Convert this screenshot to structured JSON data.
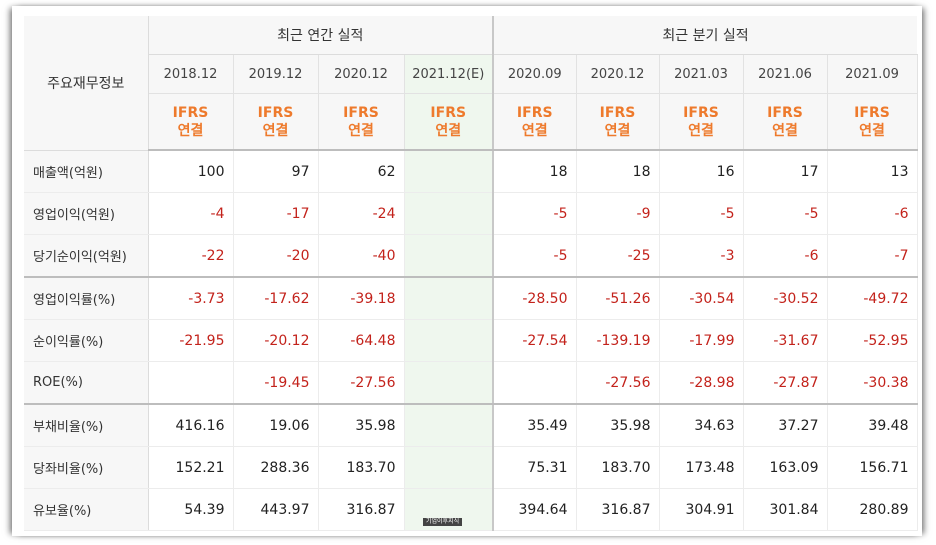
{
  "header": {
    "label": "주요재무정보",
    "annual_group": "최근 연간 실적",
    "quarter_group": "최근 분기 실적"
  },
  "periods": [
    {
      "label": "2018.12",
      "std": "IFRS",
      "cons": "연결"
    },
    {
      "label": "2019.12",
      "std": "IFRS",
      "cons": "연결"
    },
    {
      "label": "2020.12",
      "std": "IFRS",
      "cons": "연결"
    },
    {
      "label": "2021.12(E)",
      "std": "IFRS",
      "cons": "연결"
    },
    {
      "label": "2020.09",
      "std": "IFRS",
      "cons": "연결"
    },
    {
      "label": "2020.12",
      "std": "IFRS",
      "cons": "연결"
    },
    {
      "label": "2021.03",
      "std": "IFRS",
      "cons": "연결"
    },
    {
      "label": "2021.06",
      "std": "IFRS",
      "cons": "연결"
    },
    {
      "label": "2021.09",
      "std": "IFRS",
      "cons": "연결"
    }
  ],
  "rows": [
    {
      "label": "매출액(억원)",
      "values": [
        "100",
        "97",
        "62",
        "",
        "18",
        "18",
        "16",
        "17",
        "13"
      ]
    },
    {
      "label": "영업이익(억원)",
      "values": [
        "-4",
        "-17",
        "-24",
        "",
        "-5",
        "-9",
        "-5",
        "-5",
        "-6"
      ]
    },
    {
      "label": "당기순이익(억원)",
      "values": [
        "-22",
        "-20",
        "-40",
        "",
        "-5",
        "-25",
        "-3",
        "-6",
        "-7"
      ]
    },
    {
      "label": "영업이익률(%)",
      "values": [
        "-3.73",
        "-17.62",
        "-39.18",
        "",
        "-28.50",
        "-51.26",
        "-30.54",
        "-30.52",
        "-49.72"
      ]
    },
    {
      "label": "순이익률(%)",
      "values": [
        "-21.95",
        "-20.12",
        "-64.48",
        "",
        "-27.54",
        "-139.19",
        "-17.99",
        "-31.67",
        "-52.95"
      ]
    },
    {
      "label": "ROE(%)",
      "values": [
        "",
        "-19.45",
        "-27.56",
        "",
        "",
        "-27.56",
        "-28.98",
        "-27.87",
        "-30.38"
      ]
    },
    {
      "label": "부채비율(%)",
      "values": [
        "416.16",
        "19.06",
        "35.98",
        "",
        "35.49",
        "35.98",
        "34.63",
        "37.27",
        "39.48"
      ]
    },
    {
      "label": "당좌비율(%)",
      "values": [
        "152.21",
        "288.36",
        "183.70",
        "",
        "75.31",
        "183.70",
        "173.48",
        "163.09",
        "156.71"
      ]
    },
    {
      "label": "유보율(%)",
      "values": [
        "54.39",
        "443.97",
        "316.87",
        "",
        "394.64",
        "316.87",
        "304.91",
        "301.84",
        "280.89"
      ]
    }
  ],
  "watermark": "기업이후지식"
}
